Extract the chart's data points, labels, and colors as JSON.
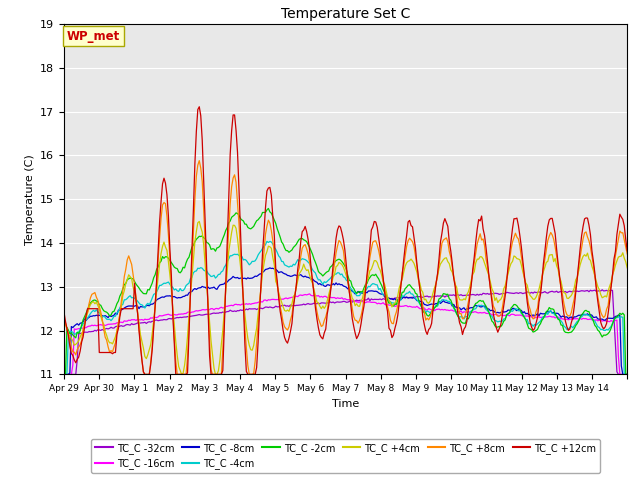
{
  "title": "Temperature Set C",
  "xlabel": "Time",
  "ylabel": "Temperature (C)",
  "ylim": [
    11.0,
    19.0
  ],
  "yticks": [
    11.0,
    12.0,
    13.0,
    14.0,
    15.0,
    16.0,
    17.0,
    18.0,
    19.0
  ],
  "background_color": "#e8e8e8",
  "series_colors": {
    "TC_C -32cm": "#9900cc",
    "TC_C -16cm": "#ff00ff",
    "TC_C -8cm": "#0000cc",
    "TC_C -4cm": "#00cccc",
    "TC_C -2cm": "#00cc00",
    "TC_C +4cm": "#cccc00",
    "TC_C +8cm": "#ff8800",
    "TC_C +12cm": "#cc0000"
  },
  "wp_met_label": "WP_met",
  "wp_met_bg": "#ffffcc",
  "wp_met_fg": "#cc0000",
  "tick_labels": [
    "Apr 29",
    "Apr 30",
    "May 1",
    "May 2",
    "May 3",
    "May 4",
    "May 5",
    "May 6",
    "May 7",
    "May 8",
    "May 9",
    "May 10",
    "May 11",
    "May 12",
    "May 13",
    "May 14",
    ""
  ],
  "legend_order": [
    "TC_C -32cm",
    "TC_C -16cm",
    "TC_C -8cm",
    "TC_C -4cm",
    "TC_C -2cm",
    "TC_C +4cm",
    "TC_C +8cm",
    "TC_C +12cm"
  ]
}
